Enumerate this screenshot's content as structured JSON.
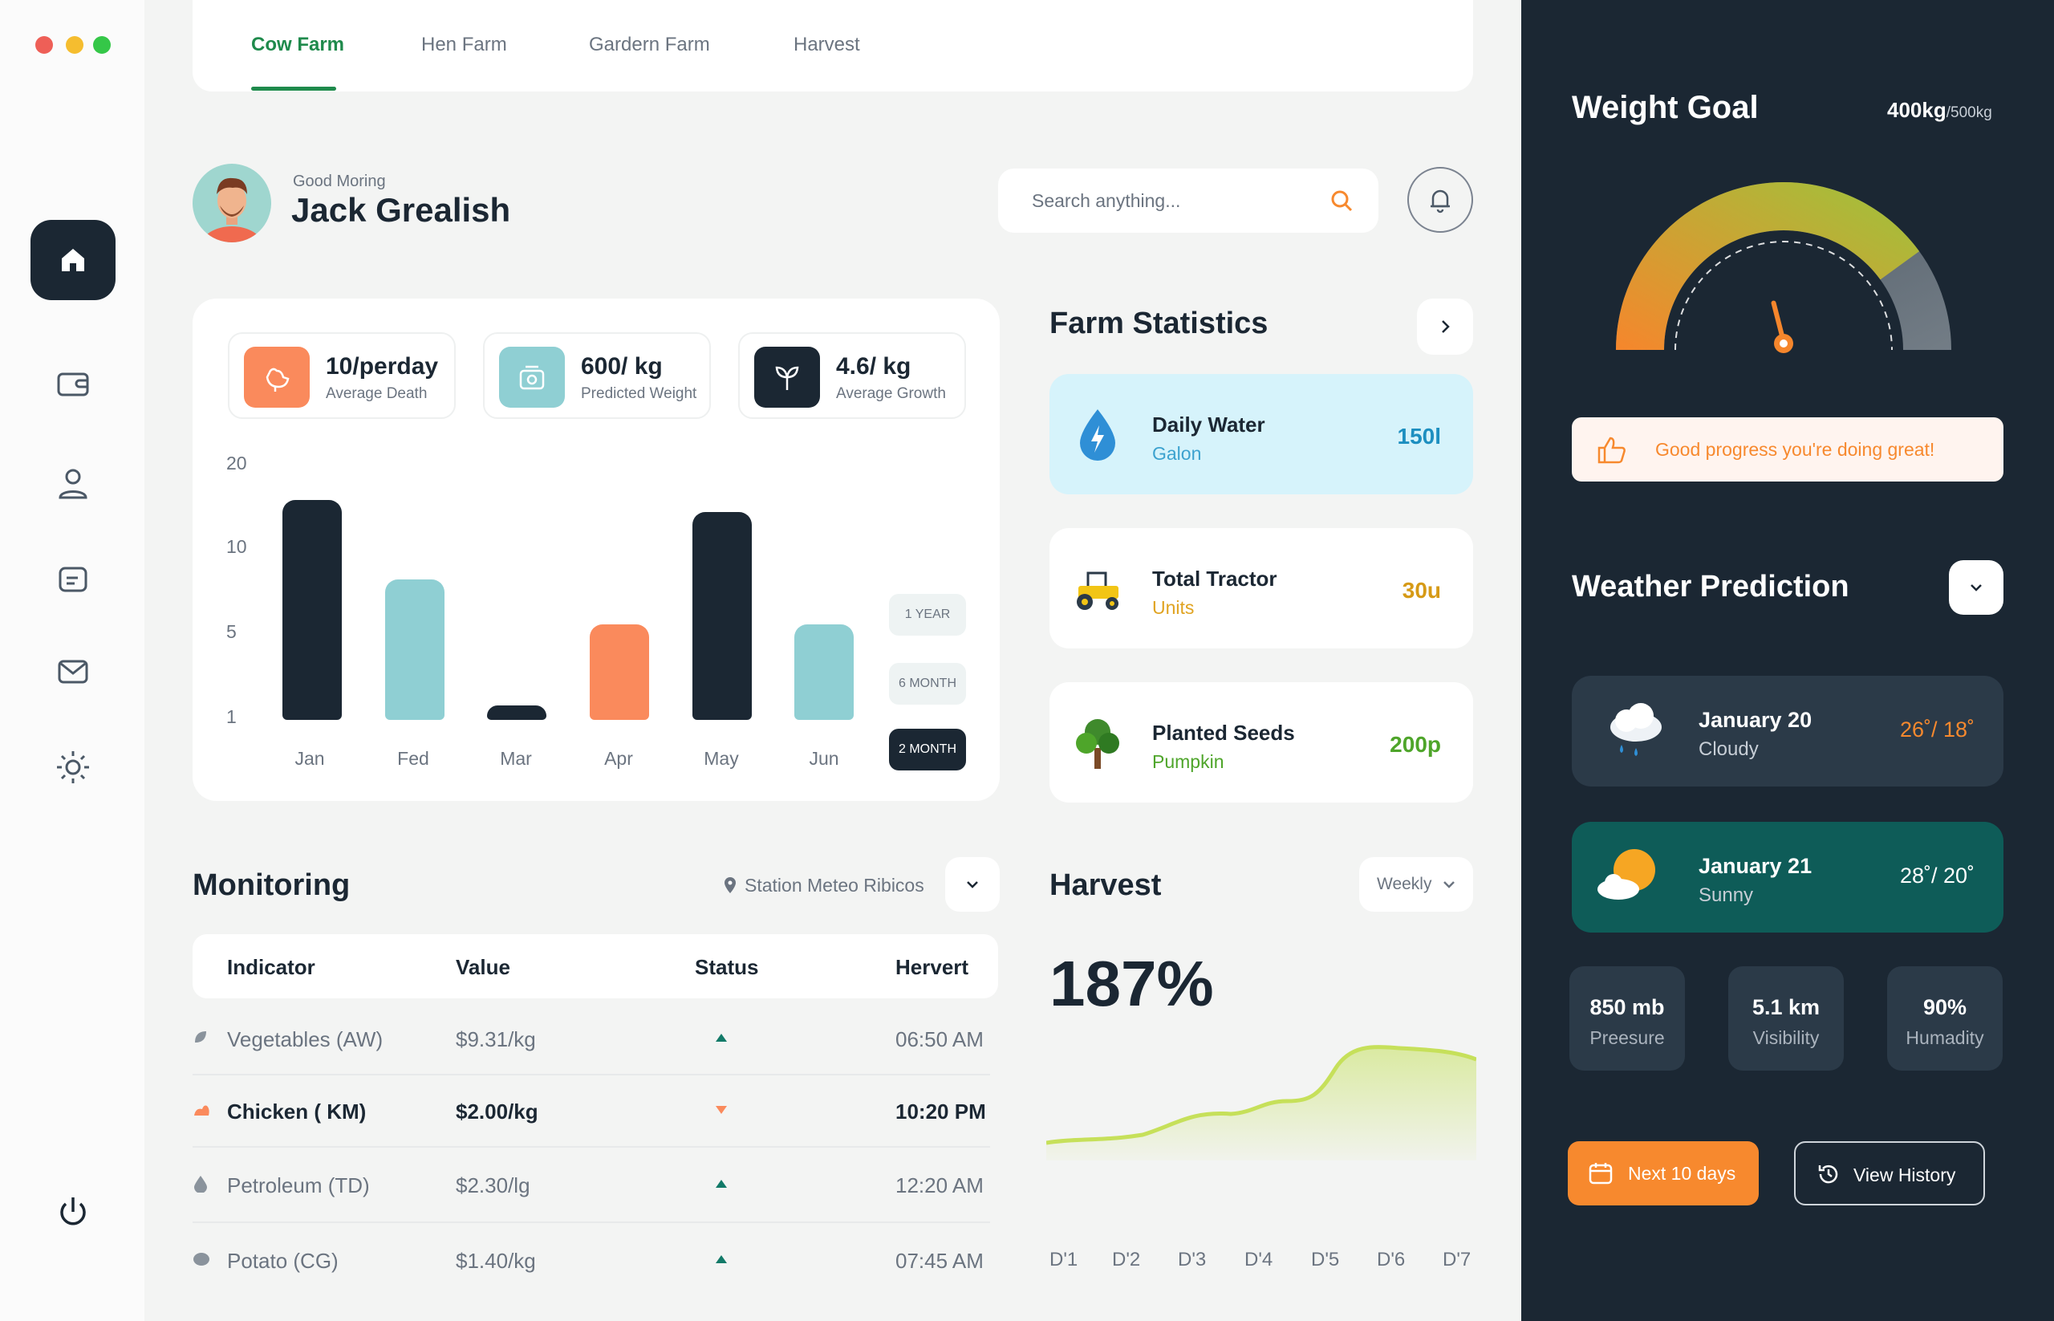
{
  "window": {
    "colors": {
      "close": "#ee5f57",
      "minimize": "#f5bd2f",
      "maximize": "#35c748"
    }
  },
  "tabs": [
    {
      "label": "Cow Farm",
      "active": true
    },
    {
      "label": "Hen Farm",
      "active": false
    },
    {
      "label": "Gardern Farm",
      "active": false
    },
    {
      "label": "Harvest",
      "active": false
    }
  ],
  "sidebar": {
    "items": [
      {
        "icon": "home-icon",
        "active": true
      },
      {
        "icon": "wallet-icon"
      },
      {
        "icon": "user-icon"
      },
      {
        "icon": "message-icon"
      },
      {
        "icon": "mail-icon"
      },
      {
        "icon": "sun-icon"
      },
      {
        "icon": "power-icon"
      }
    ]
  },
  "header": {
    "greeting": "Good Moring",
    "user_name": "Jack Grealish",
    "search_placeholder": "Search anything..."
  },
  "stats": [
    {
      "value": "10/perday",
      "label": "Average Death",
      "icon": "hen-icon",
      "color": "#fa8a5c"
    },
    {
      "value": "600/ kg",
      "label": "Predicted Weight",
      "icon": "scale-icon",
      "color": "#8fcfd3"
    },
    {
      "value": "4.6/ kg",
      "label": "Average Growth",
      "icon": "sprout-icon",
      "color": "#1b2733"
    }
  ],
  "chart_data": {
    "type": "bar",
    "categories": [
      "Jan",
      "Fed",
      "Mar",
      "Apr",
      "May",
      "Jun"
    ],
    "values": [
      15.5,
      8,
      1.5,
      5.4,
      14,
      5.4
    ],
    "colors": [
      "#1b2733",
      "#8fcfd3",
      "#1b2733",
      "#fa8a5c",
      "#1b2733",
      "#8fcfd3"
    ],
    "yticks": [
      "20",
      "10",
      "5",
      "1"
    ],
    "title": "",
    "xlabel": "",
    "ylabel": ""
  },
  "periods": [
    {
      "label": "1 YEAR",
      "active": false
    },
    {
      "label": "6 MONTH",
      "active": false
    },
    {
      "label": "2 MONTH",
      "active": true
    }
  ],
  "farm_statistics": {
    "title": "Farm Statistics",
    "items": [
      {
        "title": "Daily Water",
        "sub": "Galon",
        "value": "150l",
        "icon": "water-drop-icon",
        "bg": "#d6f3fb",
        "sub_color": "#3ca2cf",
        "val_color": "#1d8fc0"
      },
      {
        "title": "Total Tractor",
        "sub": "Units",
        "value": "30u",
        "icon": "tractor-icon",
        "bg": "#ffffff",
        "sub_color": "#e0a321",
        "val_color": "#d69a16"
      },
      {
        "title": "Planted Seeds",
        "sub": "Pumpkin",
        "value": "200p",
        "icon": "tree-icon",
        "bg": "#ffffff",
        "sub_color": "#4ea52a",
        "val_color": "#4ea52a"
      }
    ]
  },
  "monitoring": {
    "title": "Monitoring",
    "station": "Station Meteo Ribicos",
    "columns": [
      "Indicator",
      "Value",
      "Status",
      "Hervert"
    ],
    "rows": [
      {
        "indicator": "Vegetables (AW)",
        "value": "$9.31/kg",
        "status": "up",
        "time": "06:50 AM",
        "bold": false,
        "icon": "leaf-icon"
      },
      {
        "indicator": "Chicken ( KM)",
        "value": "$2.00/kg",
        "status": "down",
        "time": "10:20 PM",
        "bold": true,
        "icon": "chicken-icon"
      },
      {
        "indicator": "Petroleum (TD)",
        "value": "$2.30/lg",
        "status": "up",
        "time": "12:20 AM",
        "bold": false,
        "icon": "oil-drop-icon"
      },
      {
        "indicator": "Potato (CG)",
        "value": "$1.40/kg",
        "status": "up",
        "time": "07:45 AM",
        "bold": false,
        "icon": "potato-icon"
      }
    ]
  },
  "harvest": {
    "title": "Harvest",
    "filter": "Weekly",
    "percent": "187%",
    "days": [
      "D'1",
      "D'2",
      "D'3",
      "D'4",
      "D'5",
      "D'6",
      "D'7"
    ]
  },
  "weight_goal": {
    "title": "Weight Goal",
    "current": "400kg",
    "target": "/500kg",
    "progress_fraction": 0.8,
    "message": "Good progress you're doing great!"
  },
  "weather": {
    "title": "Weather Prediction",
    "days": [
      {
        "date": "January 20",
        "condition": "Cloudy",
        "temp": "26˚/ 18˚",
        "icon": "rain-cloud-icon",
        "bg": "#2b3a48",
        "temp_color": "#f7892e"
      },
      {
        "date": "January 21",
        "condition": "Sunny",
        "temp": "28˚/ 20˚",
        "icon": "sun-cloud-icon",
        "bg": "#0e5c58",
        "temp_color": "#ffffff"
      }
    ],
    "metrics": [
      {
        "value": "850 mb",
        "label": "Preesure"
      },
      {
        "value": "5.1 km",
        "label": "Visibility"
      },
      {
        "value": "90%",
        "label": "Humadity"
      }
    ],
    "next_button": "Next 10 days",
    "history_button": "View History"
  }
}
